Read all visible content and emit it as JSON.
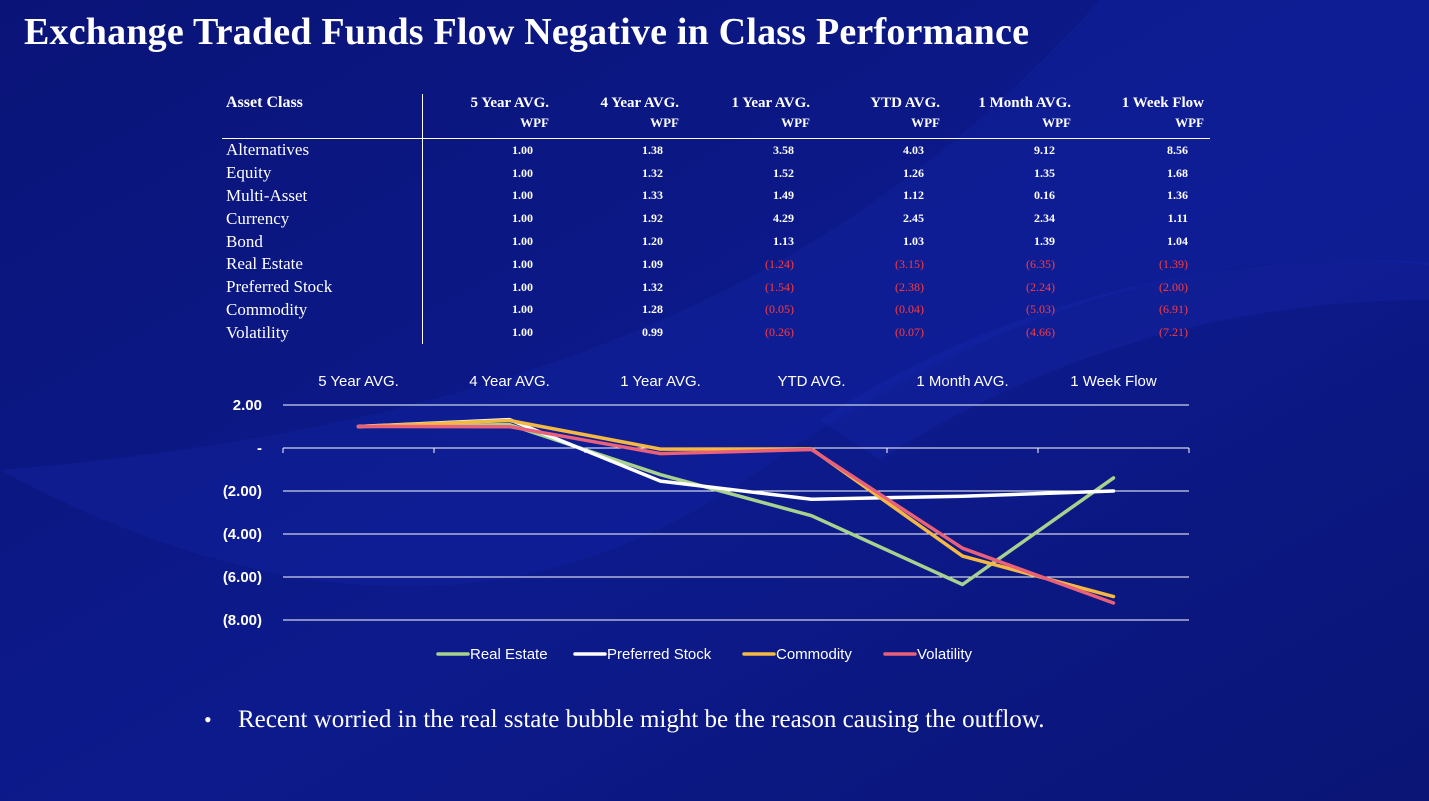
{
  "slide": {
    "title": "Exchange Traded Funds Flow Negative in Class Performance",
    "bullet": "Recent worried in the real sstate bubble might be the reason causing the outflow.",
    "bullet_glyph": "•"
  },
  "colors": {
    "background": "#0b1785",
    "negative_text": "#ff3b3b"
  },
  "table": {
    "asset_header": "Asset Class",
    "columns": [
      {
        "line1": "5 Year AVG.",
        "line2": "WPF"
      },
      {
        "line1": "4 Year AVG.",
        "line2": "WPF"
      },
      {
        "line1": "1 Year AVG.",
        "line2": "WPF"
      },
      {
        "line1": "YTD AVG.",
        "line2": "WPF"
      },
      {
        "line1": "1 Month AVG.",
        "line2": "WPF"
      },
      {
        "line1": "1 Week Flow",
        "line2": "WPF"
      }
    ],
    "rows": [
      {
        "name": "Alternatives",
        "values": [
          "1.00",
          "1.38",
          "3.58",
          "4.03",
          "9.12",
          "8.56"
        ]
      },
      {
        "name": "Equity",
        "values": [
          "1.00",
          "1.32",
          "1.52",
          "1.26",
          "1.35",
          "1.68"
        ]
      },
      {
        "name": "Multi-Asset",
        "values": [
          "1.00",
          "1.33",
          "1.49",
          "1.12",
          "0.16",
          "1.36"
        ]
      },
      {
        "name": "Currency",
        "values": [
          "1.00",
          "1.92",
          "4.29",
          "2.45",
          "2.34",
          "1.11"
        ]
      },
      {
        "name": "Bond",
        "values": [
          "1.00",
          "1.20",
          "1.13",
          "1.03",
          "1.39",
          "1.04"
        ]
      },
      {
        "name": "Real Estate",
        "values": [
          "1.00",
          "1.09",
          "(1.24)",
          "(3.15)",
          "(6.35)",
          "(1.39)"
        ]
      },
      {
        "name": "Preferred Stock",
        "values": [
          "1.00",
          "1.32",
          "(1.54)",
          "(2.38)",
          "(2.24)",
          "(2.00)"
        ]
      },
      {
        "name": "Commodity",
        "values": [
          "1.00",
          "1.28",
          "(0.05)",
          "(0.04)",
          "(5.03)",
          "(6.91)"
        ]
      },
      {
        "name": "Volatility",
        "values": [
          "1.00",
          "0.99",
          "(0.26)",
          "(0.07)",
          "(4.66)",
          "(7.21)"
        ]
      }
    ]
  },
  "chart_data": {
    "type": "line",
    "title": "",
    "xlabel": "",
    "ylabel": "",
    "categories": [
      "5 Year AVG.",
      "4 Year AVG.",
      "1 Year AVG.",
      "YTD AVG.",
      "1 Month AVG.",
      "1 Week Flow"
    ],
    "ylim": [
      -8,
      2
    ],
    "yticks": [
      2,
      0,
      -2,
      -4,
      -6,
      -8
    ],
    "ytick_labels": [
      "2.00",
      "-",
      "(2.00)",
      "(4.00)",
      "(6.00)",
      "(8.00)"
    ],
    "grid": true,
    "legend": "bottom",
    "series": [
      {
        "name": "Real Estate",
        "color": "#a9d18e",
        "values": [
          1.0,
          1.09,
          -1.24,
          -3.15,
          -6.35,
          -1.39
        ]
      },
      {
        "name": "Preferred Stock",
        "color": "#ffffff",
        "values": [
          1.0,
          1.32,
          -1.54,
          -2.38,
          -2.24,
          -2.0
        ]
      },
      {
        "name": "Commodity",
        "color": "#f4b942",
        "values": [
          1.0,
          1.28,
          -0.05,
          -0.04,
          -5.03,
          -6.91
        ]
      },
      {
        "name": "Volatility",
        "color": "#e8607a",
        "values": [
          1.0,
          0.99,
          -0.26,
          -0.07,
          -4.66,
          -7.21
        ]
      }
    ]
  }
}
